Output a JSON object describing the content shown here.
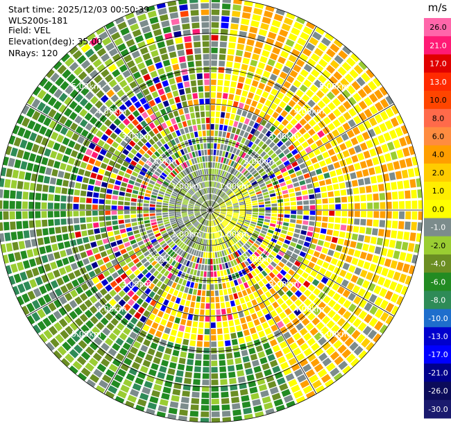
{
  "header": {
    "start_time": "Start time: 2025/12/03 00:50:39",
    "instrument": "WLS200s-181",
    "field": "Field: VEL",
    "elevation": "Elevation(deg): 35.00",
    "nrays": "NRays: 120"
  },
  "chart_data": {
    "type": "heatmap",
    "projection": "polar-ppi",
    "field": "VEL",
    "unit": "m/s",
    "elevation_deg": 35.0,
    "n_rays": 120,
    "max_range_km": 6.0,
    "range_rings_km": [
      1,
      2,
      3,
      4,
      5,
      6
    ],
    "ring_labels": [
      "1.00km",
      "2.00km",
      "3.00km",
      "4.00km",
      "5.00km"
    ],
    "spokes_deg": [
      0,
      30,
      60,
      90,
      120,
      150,
      180,
      210,
      240,
      270,
      300,
      330
    ],
    "colorbar": {
      "ticks": [
        26.0,
        21.0,
        17.0,
        13.0,
        10.0,
        8.0,
        6.0,
        4.0,
        2.0,
        1.0,
        0.0,
        -1.0,
        -2.0,
        -4.0,
        -6.0,
        -8.0,
        -10.0,
        -13.0,
        -17.0,
        -21.0,
        -26.0,
        -30.0
      ],
      "tick_labels": [
        "26.0",
        "21.0",
        "17.0",
        "13.0",
        "10.0",
        "8.0",
        "6.0",
        "4.0",
        "2.0",
        "1.0",
        "0.0",
        "-1.0",
        "-2.0",
        "-4.0",
        "-6.0",
        "-8.0",
        "-10.0",
        "-13.0",
        "-17.0",
        "-21.0",
        "-26.0",
        "-30.0"
      ],
      "colors": [
        "#ff66aa",
        "#ff1a75",
        "#e00000",
        "#ff2a00",
        "#ff4500",
        "#ff6a4a",
        "#ff8c40",
        "#ff9e00",
        "#ffcc00",
        "#ffee00",
        "#ffff00",
        "#7c8c8c",
        "#9acd32",
        "#6b8e23",
        "#228b22",
        "#2e8b57",
        "#1e6ecc",
        "#0000cd",
        "#0000ff",
        "#00008b",
        "#0b0b5a",
        "#1a1a6e"
      ]
    },
    "sectors": [
      {
        "azimuth_from": 0,
        "azimuth_to": 100,
        "dominant": "4.0",
        "description": "yellow/orange approaching flow NE-E"
      },
      {
        "azimuth_from": 100,
        "azimuth_to": 180,
        "dominant": "4.0",
        "description": "yellow/orange SE"
      },
      {
        "azimuth_from": 180,
        "azimuth_to": 300,
        "dominant": "-4.0",
        "description": "green receding flow SW-W"
      },
      {
        "azimuth_from": 300,
        "azimuth_to": 360,
        "dominant": "-2.0",
        "description": "mixed green NW"
      }
    ]
  }
}
